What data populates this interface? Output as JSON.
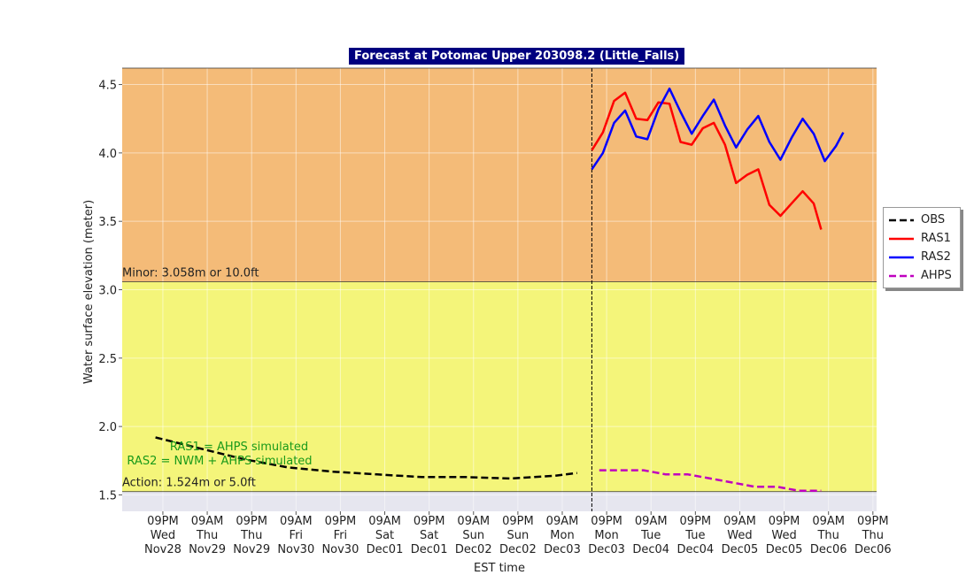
{
  "chart_data": {
    "type": "line",
    "title": "Forecast at Potomac Upper 203098.2 (Little_Falls)",
    "x_label": "EST time",
    "y_label": "Water surface elevation (meter)",
    "xlim": [
      "Nov28 10:00",
      "Dec06 22:00"
    ],
    "xticks": [
      {
        "value": "Nov28 21:00",
        "label": "09PM\nWed\nNov28"
      },
      {
        "value": "Nov29 09:00",
        "label": "09AM\nThu\nNov29"
      },
      {
        "value": "Nov29 21:00",
        "label": "09PM\nThu\nNov29"
      },
      {
        "value": "Nov30 09:00",
        "label": "09AM\nFri\nNov30"
      },
      {
        "value": "Nov30 21:00",
        "label": "09PM\nFri\nNov30"
      },
      {
        "value": "Dec01 09:00",
        "label": "09AM\nSat\nDec01"
      },
      {
        "value": "Dec01 21:00",
        "label": "09PM\nSat\nDec01"
      },
      {
        "value": "Dec02 09:00",
        "label": "09AM\nSun\nDec02"
      },
      {
        "value": "Dec02 21:00",
        "label": "09PM\nSun\nDec02"
      },
      {
        "value": "Dec03 09:00",
        "label": "09AM\nMon\nDec03"
      },
      {
        "value": "Dec03 21:00",
        "label": "09PM\nMon\nDec03"
      },
      {
        "value": "Dec04 09:00",
        "label": "09AM\nTue\nDec04"
      },
      {
        "value": "Dec04 21:00",
        "label": "09PM\nTue\nDec04"
      },
      {
        "value": "Dec05 09:00",
        "label": "09AM\nWed\nDec05"
      },
      {
        "value": "Dec05 21:00",
        "label": "09PM\nWed\nDec05"
      },
      {
        "value": "Dec06 09:00",
        "label": "09AM\nThu\nDec06"
      },
      {
        "value": "Dec06 21:00",
        "label": "09PM\nThu\nDec06"
      }
    ],
    "ylim": [
      1.38,
      4.62
    ],
    "yticks": [
      1.5,
      {
        "value": 2,
        "label": "2.0"
      },
      2.5,
      {
        "value": 3,
        "label": "3.0"
      },
      3.5,
      {
        "value": 4,
        "label": "4.0"
      },
      4.5
    ],
    "grid": true,
    "below_color": "#e6e6ef",
    "thresholds": [
      {
        "label": "Action: 1.524m or 5.0ft",
        "value": 1.524,
        "color": "#f4f57a"
      },
      {
        "label": "Minor: 3.058m or 10.0ft",
        "value": 3.058,
        "color": "#f4bb78"
      }
    ],
    "forecast_start": "Dec03 17:00",
    "annotations": [
      "RAS1 = AHPS simulated",
      "RAS2 = NWM + AHPS simulated"
    ],
    "annotation_color": "#1a9a1a",
    "legend": "right",
    "series": [
      {
        "name": "OBS",
        "color": "#000000",
        "dash": true,
        "x": [
          "Nov28 19:00",
          "Nov29 07:00",
          "Nov29 19:00",
          "Nov30 07:00",
          "Nov30 19:00",
          "Dec01 07:00",
          "Dec01 19:00",
          "Dec02 07:00",
          "Dec02 19:00",
          "Dec03 07:00",
          "Dec03 13:00"
        ],
        "values": [
          1.92,
          1.84,
          1.76,
          1.7,
          1.67,
          1.65,
          1.63,
          1.63,
          1.62,
          1.64,
          1.66
        ]
      },
      {
        "name": "RAS1",
        "color": "#ff0000",
        "dash": false,
        "x": [
          "Dec03 17:00",
          "Dec03 20:00",
          "Dec03 23:00",
          "Dec04 02:00",
          "Dec04 05:00",
          "Dec04 08:00",
          "Dec04 11:00",
          "Dec04 14:00",
          "Dec04 17:00",
          "Dec04 20:00",
          "Dec04 23:00",
          "Dec05 02:00",
          "Dec05 05:00",
          "Dec05 08:00",
          "Dec05 11:00",
          "Dec05 14:00",
          "Dec05 17:00",
          "Dec05 20:00",
          "Dec05 23:00",
          "Dec06 02:00",
          "Dec06 05:00",
          "Dec06 07:00"
        ],
        "values": [
          4.02,
          4.15,
          4.38,
          4.44,
          4.25,
          4.24,
          4.37,
          4.36,
          4.08,
          4.06,
          4.18,
          4.22,
          4.06,
          3.78,
          3.84,
          3.88,
          3.62,
          3.54,
          3.63,
          3.72,
          3.63,
          3.44
        ]
      },
      {
        "name": "RAS2",
        "color": "#0000ff",
        "dash": false,
        "x": [
          "Dec03 17:00",
          "Dec03 20:00",
          "Dec03 23:00",
          "Dec04 02:00",
          "Dec04 05:00",
          "Dec04 08:00",
          "Dec04 11:00",
          "Dec04 14:00",
          "Dec04 17:00",
          "Dec04 20:00",
          "Dec04 23:00",
          "Dec05 02:00",
          "Dec05 05:00",
          "Dec05 08:00",
          "Dec05 11:00",
          "Dec05 14:00",
          "Dec05 17:00",
          "Dec05 20:00",
          "Dec05 23:00",
          "Dec06 02:00",
          "Dec06 05:00",
          "Dec06 08:00",
          "Dec06 11:00",
          "Dec06 13:00"
        ],
        "values": [
          3.88,
          4.0,
          4.22,
          4.31,
          4.12,
          4.1,
          4.32,
          4.47,
          4.3,
          4.14,
          4.27,
          4.39,
          4.2,
          4.04,
          4.17,
          4.27,
          4.08,
          3.95,
          4.11,
          4.25,
          4.14,
          3.94,
          4.05,
          4.15
        ]
      },
      {
        "name": "AHPS",
        "color": "#bf00bf",
        "dash": true,
        "x": [
          "Dec03 19:00",
          "Dec04 01:00",
          "Dec04 07:00",
          "Dec04 13:00",
          "Dec04 19:00",
          "Dec05 01:00",
          "Dec05 07:00",
          "Dec05 13:00",
          "Dec05 19:00",
          "Dec06 01:00",
          "Dec06 07:00"
        ],
        "values": [
          1.68,
          1.68,
          1.68,
          1.65,
          1.65,
          1.62,
          1.59,
          1.56,
          1.56,
          1.53,
          1.53
        ]
      }
    ]
  }
}
